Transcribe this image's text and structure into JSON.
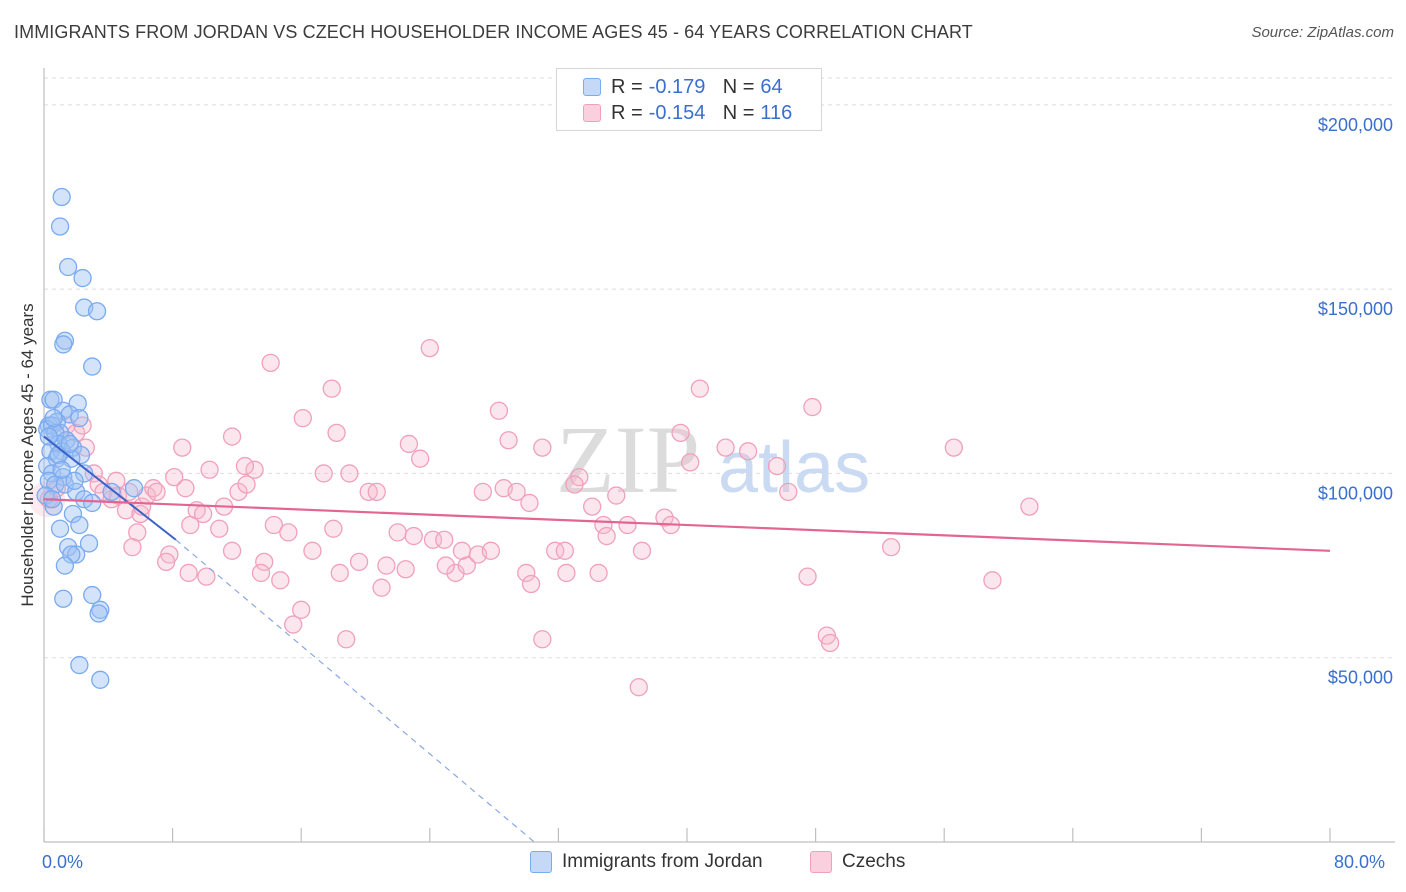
{
  "title": "IMMIGRANTS FROM JORDAN VS CZECH HOUSEHOLDER INCOME AGES 45 - 64 YEARS CORRELATION CHART",
  "source": "Source: ZipAtlas.com",
  "watermark": {
    "zip": "ZIP",
    "atlas": "atlas"
  },
  "legend": {
    "series1": {
      "r_label": "R =",
      "r_value": "-0.179",
      "n_label": "N =",
      "n_value": "64"
    },
    "series2": {
      "r_label": "R =",
      "r_value": "-0.154",
      "n_label": "N =",
      "n_value": "116"
    }
  },
  "chart_data": {
    "type": "scatter",
    "title": "IMMIGRANTS FROM JORDAN VS CZECH HOUSEHOLDER INCOME AGES 45 - 64 YEARS CORRELATION CHART",
    "xlabel": "",
    "ylabel": "Householder Income Ages 45 - 64 years",
    "xlim": [
      0,
      80
    ],
    "ylim": [
      0,
      210000
    ],
    "x_tick_labels": [
      "0.0%",
      "80.0%"
    ],
    "y_ticks": [
      50000,
      100000,
      150000,
      200000
    ],
    "y_tick_labels": [
      "$50,000",
      "$100,000",
      "$150,000",
      "$200,000"
    ],
    "grid": true,
    "series": [
      {
        "name": "Immigrants from Jordan",
        "color": "#7aaaf0",
        "line_color": "#3a63c8",
        "trend": {
          "x": [
            0,
            8.2
          ],
          "y": [
            110000,
            82000
          ]
        },
        "trend_extension": {
          "x": [
            8.2,
            30.5
          ],
          "y": [
            82000,
            0
          ]
        },
        "points": [
          [
            1.1,
            175000
          ],
          [
            1.0,
            167000
          ],
          [
            1.5,
            156000
          ],
          [
            2.4,
            153000
          ],
          [
            2.5,
            145000
          ],
          [
            3.3,
            144000
          ],
          [
            1.3,
            136000
          ],
          [
            1.2,
            135000
          ],
          [
            3.0,
            129000
          ],
          [
            0.4,
            120000
          ],
          [
            0.6,
            120000
          ],
          [
            2.1,
            119000
          ],
          [
            1.2,
            117000
          ],
          [
            1.6,
            116000
          ],
          [
            2.2,
            115000
          ],
          [
            0.3,
            113000
          ],
          [
            0.8,
            114000
          ],
          [
            0.2,
            112000
          ],
          [
            0.5,
            113000
          ],
          [
            1.0,
            111000
          ],
          [
            0.7,
            111000
          ],
          [
            1.4,
            109000
          ],
          [
            0.9,
            108000
          ],
          [
            1.8,
            107000
          ],
          [
            0.4,
            106000
          ],
          [
            1.1,
            106000
          ],
          [
            2.3,
            105000
          ],
          [
            0.8,
            104000
          ],
          [
            1.7,
            104000
          ],
          [
            0.2,
            102000
          ],
          [
            0.5,
            100000
          ],
          [
            2.5,
            100000
          ],
          [
            1.2,
            99000
          ],
          [
            0.3,
            98000
          ],
          [
            0.7,
            97000
          ],
          [
            1.3,
            97000
          ],
          [
            2.0,
            95000
          ],
          [
            4.2,
            95000
          ],
          [
            0.1,
            94000
          ],
          [
            2.5,
            93000
          ],
          [
            3.0,
            92000
          ],
          [
            0.6,
            91000
          ],
          [
            1.8,
            89000
          ],
          [
            2.2,
            86000
          ],
          [
            1.0,
            85000
          ],
          [
            5.6,
            96000
          ],
          [
            1.5,
            80000
          ],
          [
            2.8,
            81000
          ],
          [
            2.0,
            78000
          ],
          [
            1.7,
            78000
          ],
          [
            1.3,
            75000
          ],
          [
            3.0,
            67000
          ],
          [
            1.2,
            66000
          ],
          [
            3.5,
            63000
          ],
          [
            3.4,
            62000
          ],
          [
            2.2,
            48000
          ],
          [
            3.5,
            44000
          ],
          [
            0.5,
            93000
          ],
          [
            0.9,
            105000
          ],
          [
            1.6,
            108000
          ],
          [
            0.3,
            110000
          ],
          [
            1.9,
            98000
          ],
          [
            1.1,
            101000
          ],
          [
            0.6,
            115000
          ]
        ]
      },
      {
        "name": "Czechs",
        "color": "#f0a0bc",
        "line_color": "#e26592",
        "trend": {
          "x": [
            0,
            80
          ],
          "y": [
            93000,
            79000
          ]
        },
        "points": [
          [
            0.3,
            93000
          ],
          [
            0.8,
            96000
          ],
          [
            1.4,
            113000
          ],
          [
            2.0,
            111000
          ],
          [
            2.6,
            107000
          ],
          [
            2.4,
            113000
          ],
          [
            3.1,
            100000
          ],
          [
            3.4,
            97000
          ],
          [
            3.7,
            95000
          ],
          [
            4.5,
            98000
          ],
          [
            4.6,
            94000
          ],
          [
            4.2,
            93000
          ],
          [
            5.3,
            95000
          ],
          [
            5.1,
            90000
          ],
          [
            6.0,
            89000
          ],
          [
            6.1,
            91000
          ],
          [
            6.4,
            94000
          ],
          [
            6.8,
            96000
          ],
          [
            5.8,
            84000
          ],
          [
            5.5,
            80000
          ],
          [
            7.0,
            95000
          ],
          [
            7.8,
            78000
          ],
          [
            7.6,
            76000
          ],
          [
            8.6,
            107000
          ],
          [
            8.8,
            96000
          ],
          [
            9.1,
            86000
          ],
          [
            9.5,
            90000
          ],
          [
            9.9,
            89000
          ],
          [
            10.3,
            101000
          ],
          [
            10.9,
            85000
          ],
          [
            11.2,
            91000
          ],
          [
            11.7,
            79000
          ],
          [
            12.1,
            95000
          ],
          [
            12.6,
            97000
          ],
          [
            13.1,
            101000
          ],
          [
            13.7,
            76000
          ],
          [
            14.3,
            86000
          ],
          [
            14.7,
            71000
          ],
          [
            15.2,
            84000
          ],
          [
            16.1,
            115000
          ],
          [
            16.7,
            79000
          ],
          [
            17.4,
            100000
          ],
          [
            18.0,
            85000
          ],
          [
            18.4,
            73000
          ],
          [
            19.0,
            100000
          ],
          [
            19.6,
            76000
          ],
          [
            20.2,
            95000
          ],
          [
            20.7,
            95000
          ],
          [
            21.3,
            75000
          ],
          [
            22.0,
            84000
          ],
          [
            22.7,
            108000
          ],
          [
            23.4,
            104000
          ],
          [
            24.2,
            82000
          ],
          [
            24.9,
            82000
          ],
          [
            25.6,
            73000
          ],
          [
            26.3,
            75000
          ],
          [
            27.0,
            78000
          ],
          [
            27.8,
            79000
          ],
          [
            28.6,
            96000
          ],
          [
            29.4,
            95000
          ],
          [
            30.2,
            92000
          ],
          [
            31.0,
            107000
          ],
          [
            31.8,
            79000
          ],
          [
            32.5,
            73000
          ],
          [
            33.3,
            99000
          ],
          [
            34.1,
            91000
          ],
          [
            34.8,
            86000
          ],
          [
            35.6,
            94000
          ],
          [
            36.3,
            86000
          ],
          [
            37.2,
            79000
          ],
          [
            11.7,
            110000
          ],
          [
            14.1,
            130000
          ],
          [
            17.9,
            123000
          ],
          [
            18.2,
            111000
          ],
          [
            24.0,
            134000
          ],
          [
            28.3,
            117000
          ],
          [
            28.9,
            109000
          ],
          [
            30.0,
            73000
          ],
          [
            30.3,
            70000
          ],
          [
            31.0,
            55000
          ],
          [
            32.4,
            79000
          ],
          [
            34.5,
            73000
          ],
          [
            37.0,
            42000
          ],
          [
            38.6,
            88000
          ],
          [
            39.6,
            111000
          ],
          [
            40.2,
            103000
          ],
          [
            40.8,
            123000
          ],
          [
            42.4,
            107000
          ],
          [
            43.8,
            106000
          ],
          [
            45.6,
            102000
          ],
          [
            46.3,
            95000
          ],
          [
            47.5,
            72000
          ],
          [
            47.8,
            118000
          ],
          [
            48.7,
            56000
          ],
          [
            48.9,
            54000
          ],
          [
            52.7,
            80000
          ],
          [
            56.6,
            107000
          ],
          [
            59.0,
            71000
          ],
          [
            61.3,
            91000
          ],
          [
            8.1,
            99000
          ],
          [
            9.0,
            73000
          ],
          [
            10.1,
            72000
          ],
          [
            12.5,
            102000
          ],
          [
            13.5,
            73000
          ],
          [
            15.5,
            59000
          ],
          [
            16.0,
            63000
          ],
          [
            18.8,
            55000
          ],
          [
            21.0,
            69000
          ],
          [
            22.5,
            74000
          ],
          [
            23.0,
            83000
          ],
          [
            25.0,
            75000
          ],
          [
            26.0,
            79000
          ],
          [
            27.3,
            95000
          ],
          [
            33.0,
            97000
          ],
          [
            35.0,
            83000
          ],
          [
            39.0,
            86000
          ]
        ]
      }
    ]
  },
  "bottom_legend": {
    "series1": "Immigrants from Jordan",
    "series2": "Czechs"
  },
  "x_axis": {
    "min_label": "0.0%",
    "max_label": "80.0%"
  }
}
